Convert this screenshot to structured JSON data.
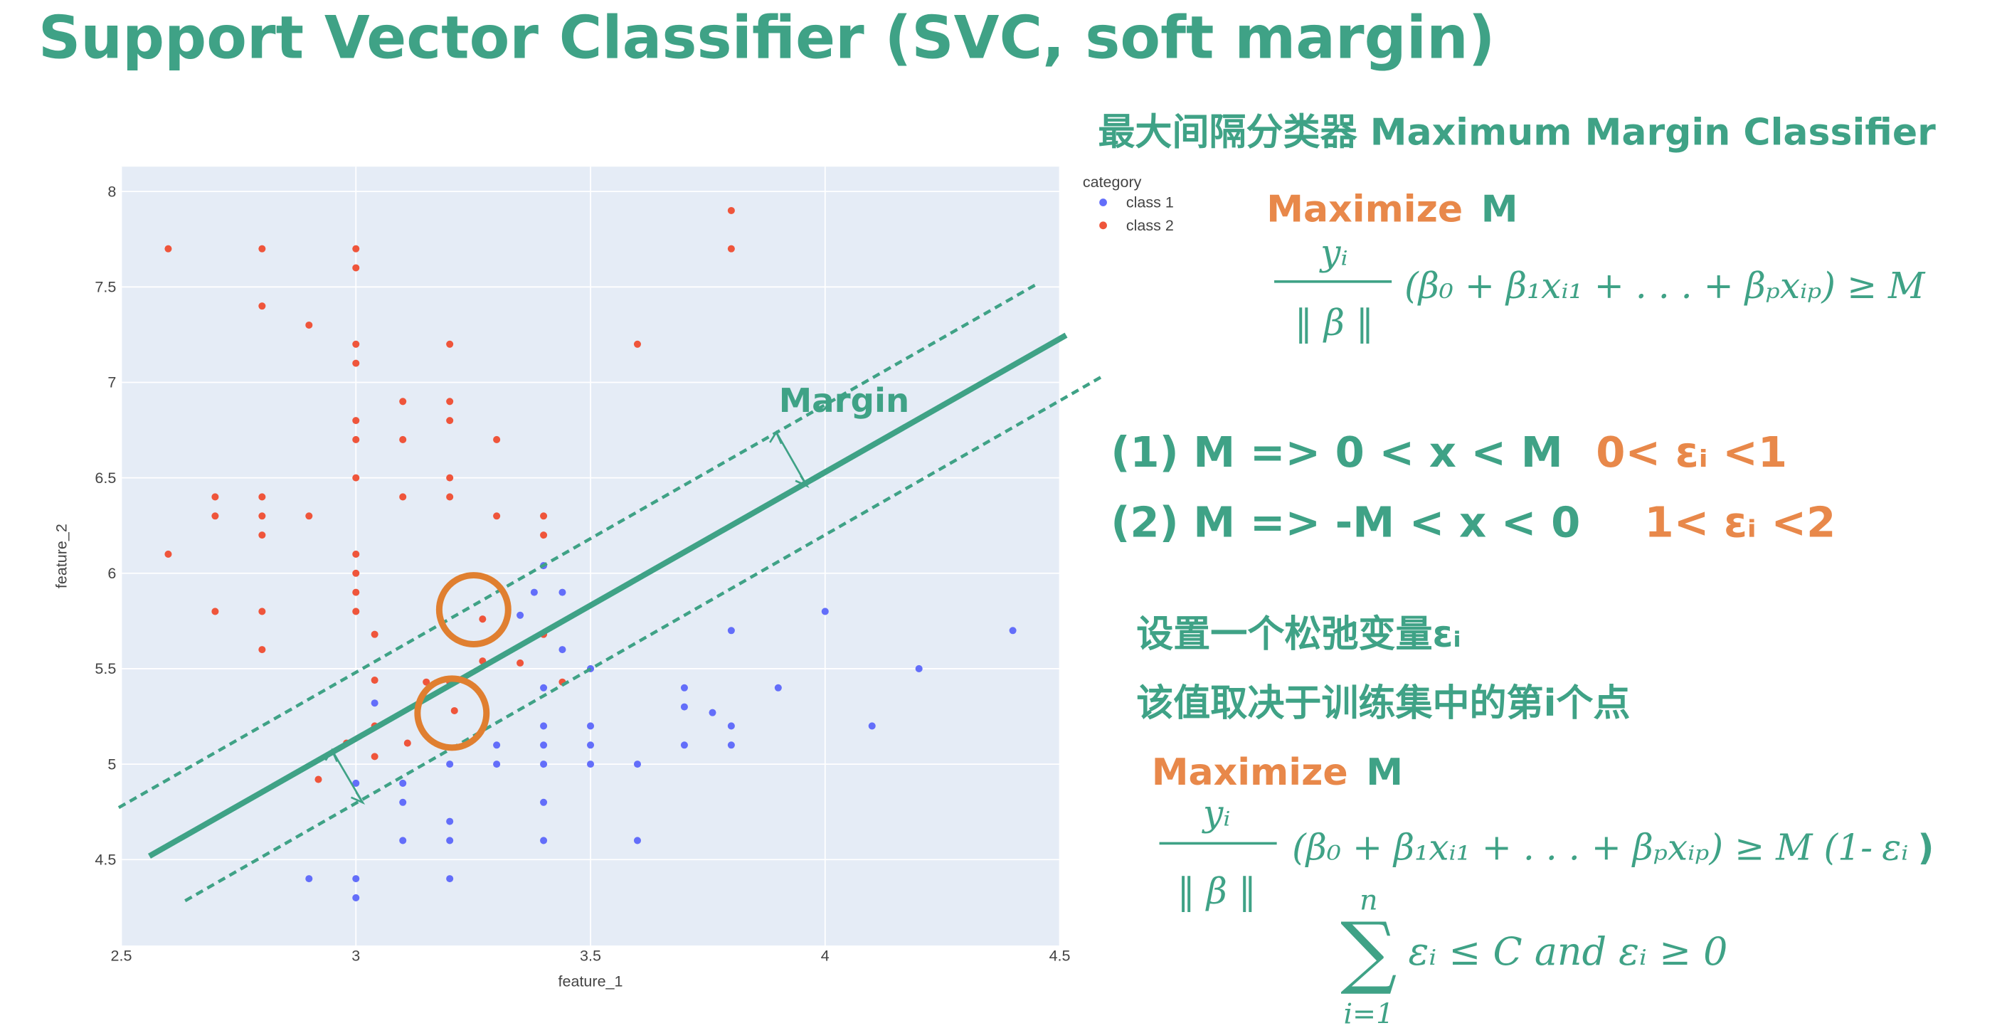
{
  "chart_data": {
    "type": "scatter",
    "x_label": "feature_1",
    "y_label": "feature_2",
    "legend_title": "category",
    "xlim": [
      2.5,
      4.5
    ],
    "ylim": [
      4.05,
      8.13
    ],
    "xticks": [
      2.5,
      3,
      3.5,
      4,
      4.5
    ],
    "yticks": [
      4.5,
      5,
      5.5,
      6,
      6.5,
      7,
      7.5,
      8
    ],
    "grid": true,
    "series": [
      {
        "name": "class 1",
        "color": "#636efa",
        "x": [
          2.9,
          3.0,
          3.0,
          3.2,
          3.1,
          3.2,
          3.4,
          3.6,
          3.2,
          3.1,
          3.4,
          3.0,
          3.1,
          3.2,
          3.3,
          3.4,
          3.5,
          3.6,
          3.3,
          3.4,
          3.5,
          3.7,
          3.8,
          3.4,
          3.5,
          3.8,
          4.1,
          3.7,
          3.76,
          3.4,
          3.7,
          3.9,
          3.5,
          4.2,
          3.04,
          3.8,
          4.4,
          4.0,
          3.44,
          3.44,
          3.4,
          3.35,
          3.38
        ],
        "y": [
          4.4,
          4.4,
          4.3,
          4.4,
          4.6,
          4.6,
          4.6,
          4.6,
          4.7,
          4.8,
          4.8,
          4.9,
          4.9,
          5.0,
          5.0,
          5.0,
          5.0,
          5.0,
          5.1,
          5.1,
          5.1,
          5.1,
          5.1,
          5.2,
          5.2,
          5.2,
          5.2,
          5.3,
          5.27,
          5.4,
          5.4,
          5.4,
          5.5,
          5.5,
          5.32,
          5.7,
          5.7,
          5.8,
          5.9,
          5.6,
          6.04,
          5.78,
          5.9
        ]
      },
      {
        "name": "class 2",
        "color": "#ef553b",
        "x": [
          2.6,
          2.8,
          3.0,
          3.0,
          2.8,
          2.9,
          3.0,
          3.2,
          3.0,
          3.6,
          3.1,
          3.2,
          3.0,
          3.2,
          3.0,
          3.1,
          3.3,
          3.0,
          3.2,
          2.7,
          2.8,
          3.1,
          3.2,
          2.7,
          2.8,
          2.9,
          3.3,
          3.4,
          2.8,
          3.4,
          2.6,
          3.0,
          3.0,
          3.0,
          2.7,
          2.8,
          3.0,
          2.8,
          3.8,
          3.8,
          3.04,
          3.27,
          3.4,
          3.35,
          3.27,
          3.04,
          3.15,
          3.2,
          3.44,
          3.04,
          3.21,
          2.98,
          3.11,
          3.04,
          2.92
        ],
        "y": [
          7.7,
          7.7,
          7.7,
          7.6,
          7.4,
          7.3,
          7.2,
          7.2,
          7.1,
          7.2,
          6.9,
          6.9,
          6.8,
          6.8,
          6.7,
          6.7,
          6.7,
          6.5,
          6.5,
          6.4,
          6.4,
          6.4,
          6.4,
          6.3,
          6.3,
          6.3,
          6.3,
          6.3,
          6.2,
          6.2,
          6.1,
          6.1,
          6.0,
          5.9,
          5.8,
          5.8,
          5.8,
          5.6,
          7.9,
          7.7,
          5.68,
          5.76,
          5.68,
          5.53,
          5.54,
          5.44,
          5.43,
          5.43,
          5.43,
          5.2,
          5.28,
          5.11,
          5.11,
          5.04,
          4.92
        ]
      }
    ]
  },
  "slide": {
    "title": "Support Vector Classifier (SVC, soft margin)",
    "margin_label": "Margin",
    "heading": "最大间隔分类器 Maximum Margin Classifier",
    "block1": {
      "maximize": "Maximize",
      "m": "M",
      "numerator": "yᵢ",
      "denominator": "‖ β ‖",
      "expression": "(β₀ + β₁xᵢ₁ + . . . + βₚxᵢₚ) ≥ M"
    },
    "case1": {
      "text": "(1) M => 0 < x < M",
      "epsilon": "0< εᵢ <1"
    },
    "case2": {
      "text": "(2) M => -M < x < 0",
      "epsilon": "1< εᵢ <2"
    },
    "note1": "设置一个松弛变量εᵢ",
    "note2": "该值取决于训练集中的第i个点",
    "block2": {
      "maximize": "Maximize",
      "m": "M",
      "numerator": "yᵢ",
      "denominator": "‖ β ‖",
      "expression": "(β₀ + β₁xᵢ₁ + . . . + βₚxᵢₚ) ≥ M (1-",
      "epsilon": "εᵢ",
      "close": ")"
    },
    "constraint": {
      "sum": "∑",
      "upper": "n",
      "lower": "i=1",
      "text": "εᵢ ≤ C and εᵢ ≥ 0"
    }
  }
}
